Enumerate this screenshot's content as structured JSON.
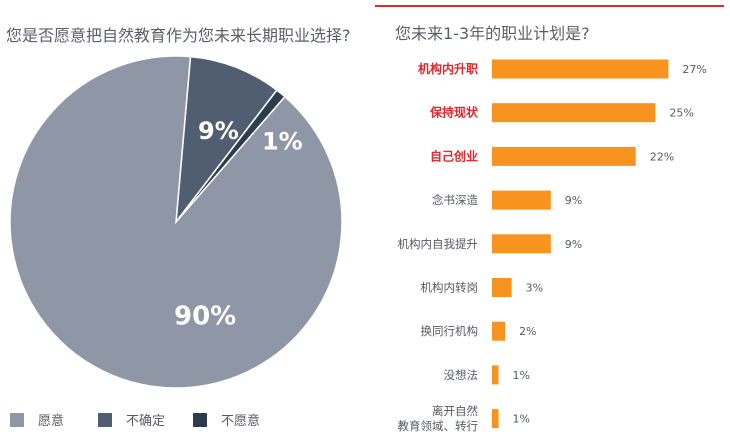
{
  "colors": {
    "pie": [
      "#8f96a5",
      "#515d70",
      "#2e3d4e"
    ],
    "bar": "#f7931e",
    "highlight": "#e0282e",
    "label": "#555a60",
    "rule": "#e0282e"
  },
  "chart_data": [
    {
      "type": "pie",
      "title": "您是否愿意把自然教育作为您未来长期职业选择?",
      "categories": [
        "愿意",
        "不确定",
        "不愿意"
      ],
      "values": [
        90,
        9,
        1
      ],
      "labels": [
        "90%",
        "9%",
        "1%"
      ],
      "legend": "bottom"
    },
    {
      "type": "bar",
      "orientation": "horizontal",
      "title": "您未来1-3年的职业计划是?",
      "categories": [
        "机构内升职",
        "保持现状",
        "自己创业",
        "念书深造",
        "机构内自我提升",
        "机构内转岗",
        "换同行机构",
        "没想法",
        "离开自然教育领域、转行"
      ],
      "category_lines": [
        [
          "机构内升职"
        ],
        [
          "保持现状"
        ],
        [
          "自己创业"
        ],
        [
          "念书深造"
        ],
        [
          "机构内自我提升"
        ],
        [
          "机构内转岗"
        ],
        [
          "换同行机构"
        ],
        [
          "没想法"
        ],
        [
          "离开自然",
          "教育领域、转行"
        ]
      ],
      "values": [
        27,
        25,
        22,
        9,
        9,
        3,
        2,
        1,
        1
      ],
      "value_labels": [
        "27%",
        "25%",
        "22%",
        "9%",
        "9%",
        "3%",
        "2%",
        "1%",
        "1%"
      ],
      "highlight_top": 3,
      "xlim": [
        0,
        30
      ]
    }
  ]
}
